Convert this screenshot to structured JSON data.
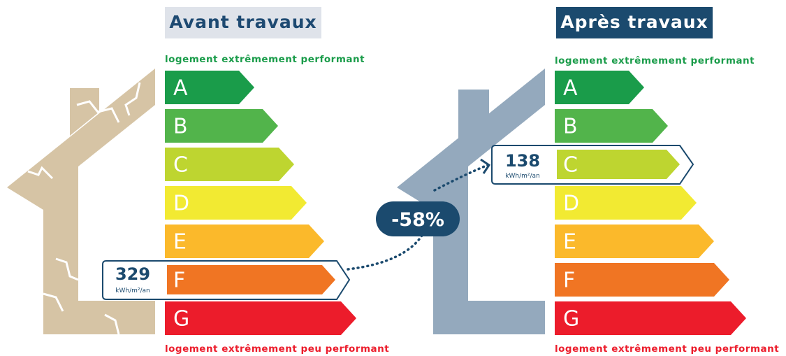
{
  "ratings": [
    {
      "letter": "A",
      "color": "#1a9c4a"
    },
    {
      "letter": "B",
      "color": "#52b44b"
    },
    {
      "letter": "C",
      "color": "#bed530"
    },
    {
      "letter": "D",
      "color": "#f2ea32"
    },
    {
      "letter": "E",
      "color": "#fbb92b"
    },
    {
      "letter": "F",
      "color": "#f07523"
    },
    {
      "letter": "G",
      "color": "#ec1c2b"
    }
  ],
  "before": {
    "title": "Avant travaux",
    "top_label": "logement extrêmement performant",
    "bottom_label": "logement extrêmement peu performant",
    "value": "329",
    "unit": "kWh/m²/an"
  },
  "after": {
    "title": "Après travaux",
    "top_label": "logement extrêmement performant",
    "bottom_label": "logement extrêmement peu performant",
    "value": "138",
    "unit": "kWh/m²/an"
  },
  "reduction": "-58%"
}
